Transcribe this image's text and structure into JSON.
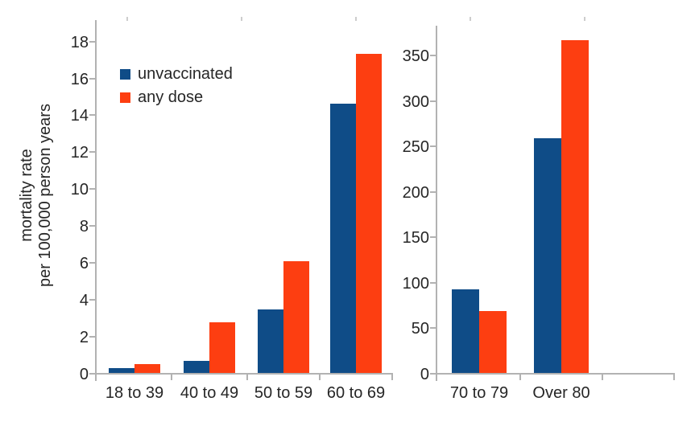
{
  "figure": {
    "y_axis_title_line1": "mortality rate",
    "y_axis_title_line2": "per 100,000 person years"
  },
  "legend": {
    "items": [
      {
        "label": "unvaccinated",
        "color": "#0f4c87"
      },
      {
        "label": "any dose",
        "color": "#fd3e11"
      }
    ]
  },
  "colors": {
    "unvaccinated": "#0f4c87",
    "any_dose": "#fd3e11",
    "axis_line": "#b2b2b2",
    "label_text": "#262626"
  },
  "chart_data": [
    {
      "type": "bar",
      "title": "",
      "categories": [
        "18 to 39",
        "40 to 49",
        "50 to 59",
        "60 to 69"
      ],
      "series": [
        {
          "name": "unvaccinated",
          "values": [
            0.25,
            0.65,
            3.45,
            14.6
          ]
        },
        {
          "name": "any dose",
          "values": [
            0.5,
            2.75,
            6.05,
            17.3
          ]
        }
      ],
      "xlabel": "",
      "ylabel": "mortality rate per 100,000 person years",
      "ylim": [
        0,
        18
      ],
      "yticks": [
        0,
        2,
        4,
        6,
        8,
        10,
        12,
        14,
        16,
        18
      ],
      "grid": false,
      "legend_position": "upper-left-inside"
    },
    {
      "type": "bar",
      "title": "",
      "categories": [
        "70 to 79",
        "Over 80"
      ],
      "series": [
        {
          "name": "unvaccinated",
          "values": [
            92,
            258
          ]
        },
        {
          "name": "any dose",
          "values": [
            68,
            366
          ]
        }
      ],
      "xlabel": "",
      "ylabel": "",
      "ylim": [
        0,
        350
      ],
      "yticks": [
        0,
        50,
        100,
        150,
        200,
        250,
        300,
        350
      ],
      "grid": false,
      "legend_position": "none"
    }
  ]
}
